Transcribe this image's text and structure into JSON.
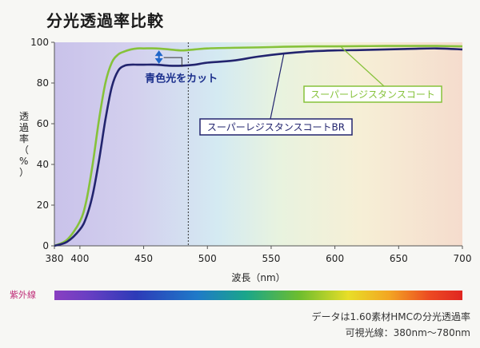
{
  "title": "分光透過率比較",
  "chart_data": {
    "type": "line",
    "xlabel": "波長（nm）",
    "ylabel": "透過率（%）",
    "xlim": [
      380,
      700
    ],
    "ylim": [
      0,
      100
    ],
    "xticks": [
      380,
      400,
      450,
      500,
      550,
      600,
      650,
      700
    ],
    "yticks": [
      0,
      20,
      40,
      60,
      80,
      100
    ],
    "grid": false,
    "background": "visible-spectrum gradient",
    "marker_line_x": 485,
    "series": [
      {
        "name": "スーパーレジスタンスコート",
        "color": "#86c23a",
        "x": [
          380,
          390,
          400,
          405,
          410,
          415,
          420,
          425,
          430,
          435,
          440,
          445,
          450,
          460,
          470,
          480,
          490,
          500,
          520,
          540,
          560,
          580,
          600,
          620,
          640,
          660,
          680,
          700
        ],
        "values": [
          0,
          3,
          12,
          22,
          40,
          62,
          80,
          90,
          94,
          95.5,
          96.5,
          97,
          97,
          97,
          96.5,
          96,
          96.5,
          97,
          97.3,
          97.5,
          97.8,
          98,
          98,
          98.1,
          98.2,
          98.2,
          98.2,
          98
        ]
      },
      {
        "name": "スーパーレジスタンスコートBR",
        "color": "#22246e",
        "x": [
          380,
          390,
          400,
          405,
          410,
          415,
          420,
          425,
          430,
          435,
          440,
          445,
          450,
          460,
          470,
          480,
          490,
          500,
          520,
          540,
          560,
          580,
          600,
          620,
          640,
          660,
          680,
          700
        ],
        "values": [
          0,
          2,
          8,
          14,
          25,
          42,
          62,
          78,
          86,
          88.5,
          89,
          89,
          89,
          89,
          88.5,
          88.5,
          89,
          90,
          91,
          93,
          94.5,
          95.5,
          96,
          96.2,
          96.5,
          96.8,
          97,
          96.5
        ]
      }
    ],
    "annotations": [
      {
        "text": "青色光をカット",
        "x": 470,
        "y": 86
      },
      {
        "text": "スーパーレジスタンスコート",
        "x": 595,
        "y": 83
      },
      {
        "text": "スーパーレジスタンスコートBR",
        "x": 500,
        "y": 65
      }
    ]
  },
  "spectrum_bar": {
    "label": "紫外線"
  },
  "notes": {
    "line1": "データは1.60素材HMCの分光透過率",
    "line2": "可視光線：380nm〜780nm"
  }
}
